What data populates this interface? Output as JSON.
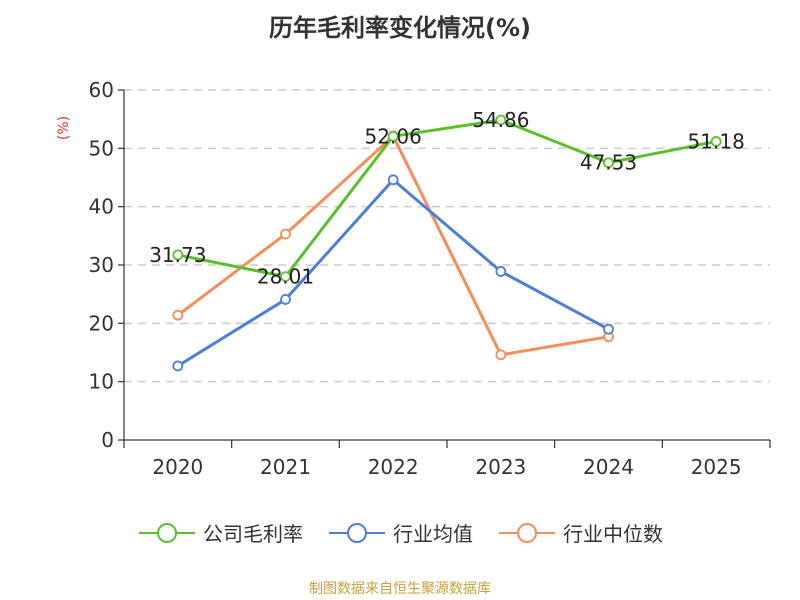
{
  "title": "历年毛利率变化情况(%)",
  "source": "制图数据来自恒生聚源数据库",
  "colors": {
    "company": "#5cc02d",
    "industry_avg": "#4d7fd8",
    "industry_median": "#f78e5a",
    "unit": "#e8312f",
    "source": "#c9a039",
    "grid": "#cccccc"
  },
  "chart_data": {
    "type": "line",
    "title": "历年毛利率变化情况(%)",
    "ylabel": "(%)",
    "xlabel": "",
    "categories": [
      "2020",
      "2021",
      "2022",
      "2023",
      "2024",
      "2025"
    ],
    "ylim": [
      0,
      60
    ],
    "yticks": [
      0,
      10,
      20,
      30,
      40,
      50,
      60
    ],
    "grid": true,
    "legend_position": "bottom",
    "series": [
      {
        "name": "公司毛利率",
        "color": "#5cc02d",
        "values": [
          31.73,
          28.01,
          52.06,
          54.86,
          47.53,
          51.18
        ],
        "labels": [
          "31.73",
          "28.01",
          "52.06",
          "54.86",
          "47.53",
          "51.18"
        ]
      },
      {
        "name": "行业均值",
        "color": "#4d7fd8",
        "values": [
          12.7,
          24.1,
          44.6,
          28.9,
          19.0,
          null
        ]
      },
      {
        "name": "行业中位数",
        "color": "#f78e5a",
        "values": [
          21.4,
          35.3,
          52.1,
          14.6,
          17.7,
          null
        ]
      }
    ]
  }
}
